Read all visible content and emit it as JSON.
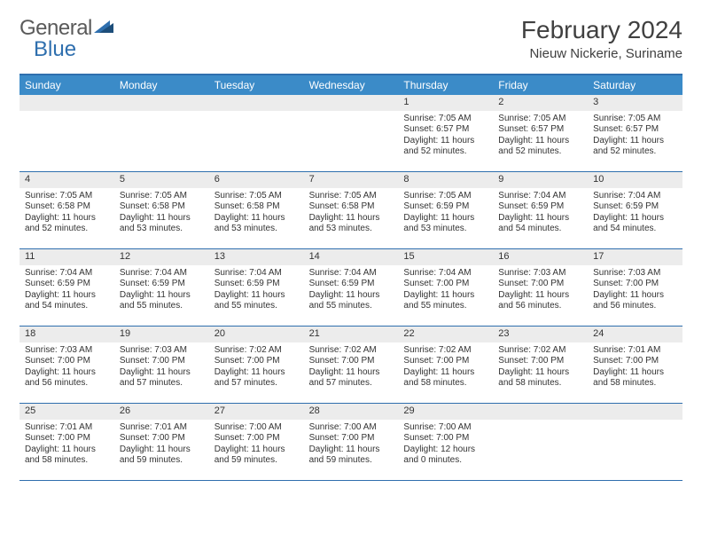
{
  "brand": {
    "part1": "General",
    "part2": "Blue"
  },
  "title": "February 2024",
  "location": "Nieuw Nickerie, Suriname",
  "colors": {
    "header_bg": "#3b8bc8",
    "border": "#2f6fae",
    "daynum_bg": "#ececec",
    "text": "#333333",
    "logo_gray": "#5a5a5a",
    "logo_blue": "#2f6fae",
    "page_bg": "#ffffff"
  },
  "typography": {
    "title_fontsize": 28,
    "location_fontsize": 15,
    "weekday_fontsize": 12,
    "daynum_fontsize": 11,
    "body_fontsize": 10
  },
  "weekdays": [
    "Sunday",
    "Monday",
    "Tuesday",
    "Wednesday",
    "Thursday",
    "Friday",
    "Saturday"
  ],
  "weeks": [
    [
      null,
      null,
      null,
      null,
      {
        "n": "1",
        "sunrise": "Sunrise: 7:05 AM",
        "sunset": "Sunset: 6:57 PM",
        "day1": "Daylight: 11 hours",
        "day2": "and 52 minutes."
      },
      {
        "n": "2",
        "sunrise": "Sunrise: 7:05 AM",
        "sunset": "Sunset: 6:57 PM",
        "day1": "Daylight: 11 hours",
        "day2": "and 52 minutes."
      },
      {
        "n": "3",
        "sunrise": "Sunrise: 7:05 AM",
        "sunset": "Sunset: 6:57 PM",
        "day1": "Daylight: 11 hours",
        "day2": "and 52 minutes."
      }
    ],
    [
      {
        "n": "4",
        "sunrise": "Sunrise: 7:05 AM",
        "sunset": "Sunset: 6:58 PM",
        "day1": "Daylight: 11 hours",
        "day2": "and 52 minutes."
      },
      {
        "n": "5",
        "sunrise": "Sunrise: 7:05 AM",
        "sunset": "Sunset: 6:58 PM",
        "day1": "Daylight: 11 hours",
        "day2": "and 53 minutes."
      },
      {
        "n": "6",
        "sunrise": "Sunrise: 7:05 AM",
        "sunset": "Sunset: 6:58 PM",
        "day1": "Daylight: 11 hours",
        "day2": "and 53 minutes."
      },
      {
        "n": "7",
        "sunrise": "Sunrise: 7:05 AM",
        "sunset": "Sunset: 6:58 PM",
        "day1": "Daylight: 11 hours",
        "day2": "and 53 minutes."
      },
      {
        "n": "8",
        "sunrise": "Sunrise: 7:05 AM",
        "sunset": "Sunset: 6:59 PM",
        "day1": "Daylight: 11 hours",
        "day2": "and 53 minutes."
      },
      {
        "n": "9",
        "sunrise": "Sunrise: 7:04 AM",
        "sunset": "Sunset: 6:59 PM",
        "day1": "Daylight: 11 hours",
        "day2": "and 54 minutes."
      },
      {
        "n": "10",
        "sunrise": "Sunrise: 7:04 AM",
        "sunset": "Sunset: 6:59 PM",
        "day1": "Daylight: 11 hours",
        "day2": "and 54 minutes."
      }
    ],
    [
      {
        "n": "11",
        "sunrise": "Sunrise: 7:04 AM",
        "sunset": "Sunset: 6:59 PM",
        "day1": "Daylight: 11 hours",
        "day2": "and 54 minutes."
      },
      {
        "n": "12",
        "sunrise": "Sunrise: 7:04 AM",
        "sunset": "Sunset: 6:59 PM",
        "day1": "Daylight: 11 hours",
        "day2": "and 55 minutes."
      },
      {
        "n": "13",
        "sunrise": "Sunrise: 7:04 AM",
        "sunset": "Sunset: 6:59 PM",
        "day1": "Daylight: 11 hours",
        "day2": "and 55 minutes."
      },
      {
        "n": "14",
        "sunrise": "Sunrise: 7:04 AM",
        "sunset": "Sunset: 6:59 PM",
        "day1": "Daylight: 11 hours",
        "day2": "and 55 minutes."
      },
      {
        "n": "15",
        "sunrise": "Sunrise: 7:04 AM",
        "sunset": "Sunset: 7:00 PM",
        "day1": "Daylight: 11 hours",
        "day2": "and 55 minutes."
      },
      {
        "n": "16",
        "sunrise": "Sunrise: 7:03 AM",
        "sunset": "Sunset: 7:00 PM",
        "day1": "Daylight: 11 hours",
        "day2": "and 56 minutes."
      },
      {
        "n": "17",
        "sunrise": "Sunrise: 7:03 AM",
        "sunset": "Sunset: 7:00 PM",
        "day1": "Daylight: 11 hours",
        "day2": "and 56 minutes."
      }
    ],
    [
      {
        "n": "18",
        "sunrise": "Sunrise: 7:03 AM",
        "sunset": "Sunset: 7:00 PM",
        "day1": "Daylight: 11 hours",
        "day2": "and 56 minutes."
      },
      {
        "n": "19",
        "sunrise": "Sunrise: 7:03 AM",
        "sunset": "Sunset: 7:00 PM",
        "day1": "Daylight: 11 hours",
        "day2": "and 57 minutes."
      },
      {
        "n": "20",
        "sunrise": "Sunrise: 7:02 AM",
        "sunset": "Sunset: 7:00 PM",
        "day1": "Daylight: 11 hours",
        "day2": "and 57 minutes."
      },
      {
        "n": "21",
        "sunrise": "Sunrise: 7:02 AM",
        "sunset": "Sunset: 7:00 PM",
        "day1": "Daylight: 11 hours",
        "day2": "and 57 minutes."
      },
      {
        "n": "22",
        "sunrise": "Sunrise: 7:02 AM",
        "sunset": "Sunset: 7:00 PM",
        "day1": "Daylight: 11 hours",
        "day2": "and 58 minutes."
      },
      {
        "n": "23",
        "sunrise": "Sunrise: 7:02 AM",
        "sunset": "Sunset: 7:00 PM",
        "day1": "Daylight: 11 hours",
        "day2": "and 58 minutes."
      },
      {
        "n": "24",
        "sunrise": "Sunrise: 7:01 AM",
        "sunset": "Sunset: 7:00 PM",
        "day1": "Daylight: 11 hours",
        "day2": "and 58 minutes."
      }
    ],
    [
      {
        "n": "25",
        "sunrise": "Sunrise: 7:01 AM",
        "sunset": "Sunset: 7:00 PM",
        "day1": "Daylight: 11 hours",
        "day2": "and 58 minutes."
      },
      {
        "n": "26",
        "sunrise": "Sunrise: 7:01 AM",
        "sunset": "Sunset: 7:00 PM",
        "day1": "Daylight: 11 hours",
        "day2": "and 59 minutes."
      },
      {
        "n": "27",
        "sunrise": "Sunrise: 7:00 AM",
        "sunset": "Sunset: 7:00 PM",
        "day1": "Daylight: 11 hours",
        "day2": "and 59 minutes."
      },
      {
        "n": "28",
        "sunrise": "Sunrise: 7:00 AM",
        "sunset": "Sunset: 7:00 PM",
        "day1": "Daylight: 11 hours",
        "day2": "and 59 minutes."
      },
      {
        "n": "29",
        "sunrise": "Sunrise: 7:00 AM",
        "sunset": "Sunset: 7:00 PM",
        "day1": "Daylight: 12 hours",
        "day2": "and 0 minutes."
      },
      null,
      null
    ]
  ]
}
